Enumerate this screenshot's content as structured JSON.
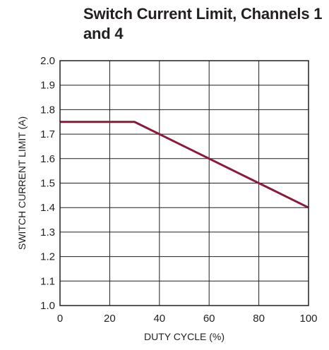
{
  "chart_data": {
    "type": "line",
    "title": "Switch Current Limit, Channels 1 and 4",
    "xlabel": "DUTY CYCLE (%)",
    "ylabel": "SWITCH CURRENT LIMIT (A)",
    "xlim": [
      0,
      100
    ],
    "ylim": [
      1.0,
      2.0
    ],
    "xticks": [
      0,
      20,
      40,
      60,
      80,
      100
    ],
    "xtick_labels": [
      "0",
      "20",
      "40",
      "60",
      "80",
      "100"
    ],
    "yticks": [
      1.0,
      1.1,
      1.2,
      1.3,
      1.4,
      1.5,
      1.6,
      1.7,
      1.8,
      1.9,
      2.0
    ],
    "ytick_labels": [
      "1.0",
      "1.1",
      "1.2",
      "1.3",
      "1.4",
      "1.5",
      "1.6",
      "1.7",
      "1.8",
      "1.9",
      "2.0"
    ],
    "grid": true,
    "series": [
      {
        "x": [
          0,
          30,
          100
        ],
        "y": [
          1.75,
          1.75,
          1.4
        ],
        "color": "#8b1a3a"
      }
    ]
  }
}
